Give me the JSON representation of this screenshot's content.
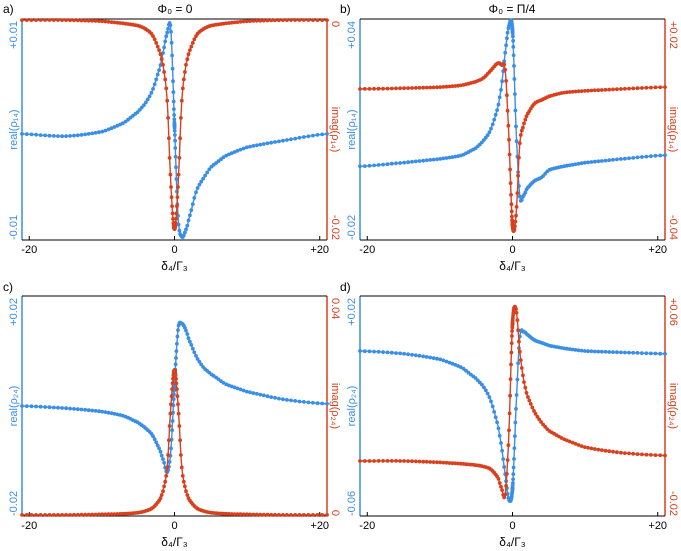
{
  "colors": {
    "real": "#3a8ee6",
    "imag": "#d8401e",
    "axis": "#000000"
  },
  "chart_data": [
    {
      "panel": "a)",
      "type": "line",
      "title": "Φ₀ = 0",
      "xlabel": "δ₄/Γ₃",
      "xlim": [
        -21,
        21
      ],
      "xtick_labels": [
        "-20",
        "0",
        "+20"
      ],
      "left_axis": {
        "label": "real(ρ₁₄)",
        "ylim": [
          -0.01,
          0.01
        ],
        "tick_labels": [
          "+0.01",
          "-0.01"
        ]
      },
      "right_axis": {
        "label": "imag(ρ₁₄)",
        "ylim": [
          -0.02,
          0.0
        ],
        "tick_labels": [
          "0",
          "-0.02"
        ]
      },
      "series": [
        {
          "axis": "left",
          "color": "#3a8ee6",
          "x": [
            -21,
            -15,
            -10,
            -7,
            -5,
            -4,
            -3,
            -2,
            -1.5,
            -1,
            -0.5,
            0,
            0.5,
            1,
            1.5,
            2,
            3,
            4,
            5,
            7,
            10,
            15,
            21
          ],
          "y": [
            -0.0004,
            -0.0006,
            -0.0002,
            0.0006,
            0.0016,
            0.0024,
            0.0036,
            0.0056,
            0.0072,
            0.0088,
            0.009,
            0.0004,
            -0.008,
            -0.0097,
            -0.0092,
            -0.008,
            -0.0056,
            -0.0044,
            -0.0034,
            -0.0024,
            -0.0016,
            -0.001,
            -0.0004
          ]
        },
        {
          "axis": "right",
          "color": "#d8401e",
          "x": [
            -21,
            -15,
            -10,
            -7,
            -5,
            -4,
            -3,
            -2,
            -1.5,
            -1,
            -0.5,
            0,
            0.5,
            1,
            1.5,
            2,
            3,
            4,
            5,
            7,
            10,
            15,
            21
          ],
          "y": [
            -0.0001,
            -0.0001,
            -0.0002,
            -0.0004,
            -0.0006,
            -0.0009,
            -0.0015,
            -0.003,
            -0.0045,
            -0.0075,
            -0.015,
            -0.019,
            -0.015,
            -0.0075,
            -0.0045,
            -0.003,
            -0.0015,
            -0.0009,
            -0.0006,
            -0.0004,
            -0.0002,
            -0.0001,
            -0.0001
          ]
        }
      ]
    },
    {
      "panel": "b)",
      "type": "line",
      "title": "Φ₀ = Π/4",
      "xlabel": "δ₄/Γ₃",
      "xlim": [
        -21,
        21
      ],
      "xtick_labels": [
        "-20",
        "0",
        "+20"
      ],
      "left_axis": {
        "label": "real(ρ₁₄)",
        "ylim": [
          -0.02,
          0.04
        ],
        "tick_labels": [
          "+0.04",
          "-0.02"
        ]
      },
      "right_axis": {
        "label": "imag(ρ₁₄)",
        "ylim": [
          -0.04,
          0.02
        ],
        "tick_labels": [
          "+0.02",
          "-0.04"
        ]
      },
      "series": [
        {
          "axis": "left",
          "color": "#3a8ee6",
          "x": [
            -21,
            -15,
            -10,
            -7,
            -5,
            -4,
            -3,
            -2,
            -1.5,
            -1,
            -0.5,
            0,
            0.5,
            1,
            1.5,
            2,
            3,
            4,
            5,
            7,
            10,
            15,
            21
          ],
          "y": [
            0.0,
            0.001,
            0.002,
            0.003,
            0.005,
            0.007,
            0.01,
            0.016,
            0.022,
            0.031,
            0.038,
            0.037,
            0.01,
            -0.008,
            -0.008,
            -0.006,
            -0.004,
            -0.003,
            -0.001,
            0.0,
            0.001,
            0.002,
            0.003
          ]
        },
        {
          "axis": "right",
          "color": "#d8401e",
          "x": [
            -21,
            -15,
            -10,
            -7,
            -5,
            -4,
            -3,
            -2,
            -1.5,
            -1,
            -0.5,
            0,
            0.5,
            1,
            1.5,
            2,
            3,
            4,
            5,
            7,
            10,
            15,
            21
          ],
          "y": [
            0.001,
            0.0012,
            0.0015,
            0.002,
            0.003,
            0.004,
            0.006,
            0.008,
            0.0075,
            0.006,
            -0.012,
            -0.036,
            -0.033,
            -0.014,
            -0.009,
            -0.006,
            -0.003,
            -0.002,
            -0.001,
            0.0,
            0.0005,
            0.001,
            0.0015
          ]
        }
      ]
    },
    {
      "panel": "c)",
      "type": "line",
      "title": "",
      "xlabel": "δ₄/Γ₃",
      "xlim": [
        -21,
        21
      ],
      "xtick_labels": [
        "-20",
        "0",
        "+20"
      ],
      "left_axis": {
        "label": "real(ρ₂₄)",
        "ylim": [
          -0.02,
          0.02
        ],
        "tick_labels": [
          "+0.02",
          "-0.02"
        ]
      },
      "right_axis": {
        "label": "imag(ρ₂₄)",
        "ylim": [
          0.0,
          0.04
        ],
        "tick_labels": [
          "0.04",
          "0"
        ]
      },
      "series": [
        {
          "axis": "left",
          "color": "#3a8ee6",
          "x": [
            -21,
            -15,
            -10,
            -7,
            -5,
            -4,
            -3,
            -2,
            -1.5,
            -1,
            -0.5,
            0,
            0.5,
            1,
            1.5,
            2,
            3,
            4,
            5,
            7,
            10,
            15,
            21
          ],
          "y": [
            0.0,
            -0.0004,
            -0.001,
            -0.0018,
            -0.003,
            -0.004,
            -0.0054,
            -0.008,
            -0.01,
            -0.012,
            -0.008,
            0.004,
            0.014,
            0.015,
            0.014,
            0.012,
            0.009,
            0.007,
            0.0058,
            0.004,
            0.0026,
            0.0012,
            0.0004
          ]
        },
        {
          "axis": "right",
          "color": "#d8401e",
          "x": [
            -21,
            -15,
            -10,
            -7,
            -5,
            -4,
            -3,
            -2,
            -1.5,
            -1,
            -0.5,
            0,
            0.5,
            1,
            1.5,
            2,
            3,
            4,
            5,
            7,
            10,
            15,
            21
          ],
          "y": [
            0.0002,
            0.0002,
            0.0003,
            0.0004,
            0.0006,
            0.0009,
            0.0015,
            0.003,
            0.005,
            0.009,
            0.02,
            0.0265,
            0.02,
            0.009,
            0.005,
            0.003,
            0.0015,
            0.0009,
            0.0006,
            0.0004,
            0.0003,
            0.0002,
            0.0002
          ]
        }
      ]
    },
    {
      "panel": "d)",
      "type": "line",
      "title": "",
      "xlabel": "δ₄/Γ₃",
      "xlim": [
        -21,
        21
      ],
      "xtick_labels": [
        "-20",
        "0",
        "+20"
      ],
      "left_axis": {
        "label": "real(ρ₂₄)",
        "ylim": [
          -0.06,
          0.02
        ],
        "tick_labels": [
          "+0.02",
          "-0.06"
        ]
      },
      "right_axis": {
        "label": "imag(ρ₂₄)",
        "ylim": [
          -0.02,
          0.06
        ],
        "tick_labels": [
          "+0.06",
          "-0.02"
        ]
      },
      "series": [
        {
          "axis": "left",
          "color": "#3a8ee6",
          "x": [
            -21,
            -15,
            -10,
            -7,
            -5,
            -4,
            -3,
            -2,
            -1.5,
            -1,
            -0.5,
            0,
            0.5,
            1,
            1.5,
            2,
            3,
            4,
            5,
            7,
            10,
            15,
            21
          ],
          "y": [
            0.0,
            -0.001,
            -0.003,
            -0.006,
            -0.01,
            -0.013,
            -0.018,
            -0.027,
            -0.035,
            -0.045,
            -0.054,
            -0.05,
            -0.02,
            0.005,
            0.007,
            0.006,
            0.004,
            0.003,
            0.002,
            0.001,
            0.0,
            -0.0005,
            -0.001
          ]
        },
        {
          "axis": "right",
          "color": "#d8401e",
          "x": [
            -21,
            -15,
            -10,
            -7,
            -5,
            -4,
            -3,
            -2,
            -1.5,
            -1,
            -0.5,
            0,
            0.5,
            1,
            1.5,
            2,
            3,
            4,
            5,
            7,
            10,
            15,
            21
          ],
          "y": [
            0.0,
            0.0,
            -0.0005,
            -0.001,
            -0.0015,
            -0.002,
            -0.003,
            -0.006,
            -0.01,
            -0.012,
            0.01,
            0.05,
            0.055,
            0.04,
            0.03,
            0.024,
            0.018,
            0.014,
            0.011,
            0.008,
            0.005,
            0.003,
            0.002
          ]
        }
      ]
    }
  ]
}
